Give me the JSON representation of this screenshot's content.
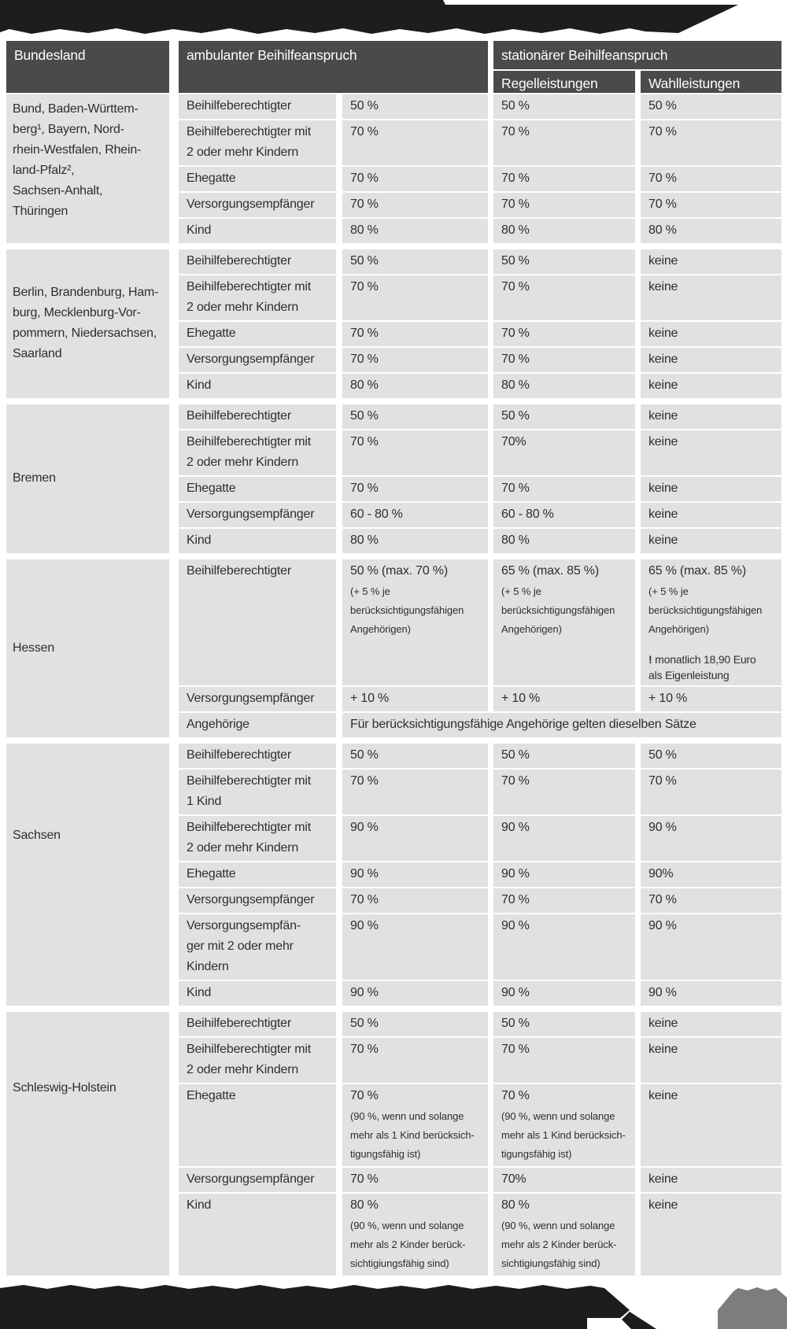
{
  "colors": {
    "header_bg": "#4a4a4a",
    "cell_bg": "#e1e1e1",
    "banner_black": "#1d1d1b",
    "corner_gray": "#7d7d7d"
  },
  "header": {
    "bundesland": "Bundesland",
    "ambulant": "ambulanter Beihilfeanspruch",
    "stationaer": "stationärer Beihilfeanspruch",
    "regelleistungen": "Regelleistungen",
    "wahlleistungen": "Wahlleistungen"
  },
  "groups": [
    {
      "state": "Bund, Baden-Württem-\nberg¹, Bayern, Nord-\nrhein-Westfalen, Rhein-\nland-Pfalz²,\nSachsen-Anhalt,\nThüringen",
      "rows": [
        {
          "label": "Beihilfeberechtigter",
          "ambulant": "50 %",
          "regel": "50 %",
          "wahl": "50 %"
        },
        {
          "label": "Beihilfeberechtigter mit\n2 oder mehr Kindern",
          "ambulant": "70 %",
          "regel": "70 %",
          "wahl": "70 %"
        },
        {
          "label": "Ehegatte",
          "ambulant": "70 %",
          "regel": "70 %",
          "wahl": "70 %"
        },
        {
          "label": "Versorgungsempfänger",
          "ambulant": "70 %",
          "regel": "70 %",
          "wahl": "70 %"
        },
        {
          "label": "Kind",
          "ambulant": "80 %",
          "regel": "80 %",
          "wahl": "80 %"
        }
      ]
    },
    {
      "state": "Berlin, Brandenburg, Ham-\nburg, Mecklenburg-Vor-\npommern, Niedersachsen,\nSaarland",
      "rows": [
        {
          "label": "Beihilfeberechtigter",
          "ambulant": "50 %",
          "regel": "50 %",
          "wahl": "keine"
        },
        {
          "label": "Beihilfeberechtigter mit\n2 oder mehr Kindern",
          "ambulant": "70 %",
          "regel": "70 %",
          "wahl": "keine"
        },
        {
          "label": "Ehegatte",
          "ambulant": "70 %",
          "regel": "70 %",
          "wahl": "keine"
        },
        {
          "label": "Versorgungsempfänger",
          "ambulant": "70 %",
          "regel": "70 %",
          "wahl": "keine"
        },
        {
          "label": "Kind",
          "ambulant": "80 %",
          "regel": "80 %",
          "wahl": "keine"
        }
      ]
    },
    {
      "state": "Bremen",
      "rows": [
        {
          "label": "Beihilfeberechtigter",
          "ambulant": "50 %",
          "regel": "50 %",
          "wahl": "keine"
        },
        {
          "label": "Beihilfeberechtigter mit\n2 oder mehr Kindern",
          "ambulant": "70 %",
          "regel": "70%",
          "wahl": "keine"
        },
        {
          "label": "Ehegatte",
          "ambulant": "70 %",
          "regel": "70 %",
          "wahl": "keine"
        },
        {
          "label": "Versorgungsempfänger",
          "ambulant": "60 - 80 %",
          "regel": "60 - 80 %",
          "wahl": "keine"
        },
        {
          "label": "Kind",
          "ambulant": "80 %",
          "regel": "80 %",
          "wahl": "keine"
        }
      ]
    },
    {
      "state": "Hessen",
      "rows": [
        {
          "label": "Beihilfeberechtigter",
          "ambulant": {
            "v": "50 % (max. 70 %)",
            "note": "(+ 5 % je\nberücksichtigungsfähigen\nAngehörigen)"
          },
          "regel": {
            "v": "65 % (max. 85 %)",
            "note": "(+ 5 % je\nberücksichtigungsfähigen\nAngehörigen)"
          },
          "wahl": {
            "v": "65 % (max. 85 %)",
            "note": "(+ 5 % je\nberücksichtigungsfähigen\nAngehörigen)",
            "warn_mark": "!",
            "warn": "monatlich 18,90 Euro\nals Eigenleistung"
          }
        },
        {
          "label": "Versorgungsempfänger",
          "ambulant": "+ 10 %",
          "regel": "+ 10 %",
          "wahl": "+ 10 %"
        },
        {
          "label": "Angehörige",
          "span": "Für berücksichtigungsfähige Angehörige gelten dieselben Sätze"
        }
      ]
    },
    {
      "state": "Sachsen",
      "rows": [
        {
          "label": "Beihilfeberechtigter",
          "ambulant": "50 %",
          "regel": "50 %",
          "wahl": "50 %"
        },
        {
          "label": "Beihilfeberechtigter mit\n1 Kind",
          "ambulant": "70 %",
          "regel": "70 %",
          "wahl": "70 %"
        },
        {
          "label": "Beihilfeberechtigter mit\n2 oder mehr Kindern",
          "ambulant": "90 %",
          "regel": "90 %",
          "wahl": "90 %"
        },
        {
          "label": "Ehegatte",
          "ambulant": "90 %",
          "regel": "90 %",
          "wahl": "90%"
        },
        {
          "label": "Versorgungsempfänger",
          "ambulant": "70 %",
          "regel": "70 %",
          "wahl": "70 %"
        },
        {
          "label": "Versorgungsempfän-\nger mit 2 oder mehr\nKindern",
          "ambulant": "90 %",
          "regel": "90 %",
          "wahl": "90 %"
        },
        {
          "label": "Kind",
          "ambulant": "90 %",
          "regel": "90 %",
          "wahl": "90 %"
        }
      ]
    },
    {
      "state": "Schleswig-Holstein",
      "rows": [
        {
          "label": "Beihilfeberechtigter",
          "ambulant": "50 %",
          "regel": "50 %",
          "wahl": "keine"
        },
        {
          "label": "Beihilfeberechtigter mit\n2 oder mehr Kindern",
          "ambulant": "70 %",
          "regel": "70 %",
          "wahl": "keine"
        },
        {
          "label": "Ehegatte",
          "ambulant": {
            "v": "70 %",
            "note": "(90 %, wenn und solange\nmehr als 1 Kind berücksich-\ntigungsfähig ist)"
          },
          "regel": {
            "v": "70 %",
            "note": "(90 %, wenn und solange\nmehr als 1 Kind berücksich-\ntigungsfähig ist)"
          },
          "wahl": "keine"
        },
        {
          "label": "Versorgungsempfänger",
          "ambulant": "70 %",
          "regel": "70%",
          "wahl": "keine"
        },
        {
          "label": "Kind",
          "ambulant": {
            "v": "80 %",
            "note": "(90 %, wenn und solange\nmehr als 2 Kinder berück-\nsichtigiungsfähig sind)"
          },
          "regel": {
            "v": "80 %",
            "note": "(90 %, wenn und solange\nmehr als 2 Kinder berück-\nsichtigiungsfähig sind)"
          },
          "wahl": "keine"
        }
      ]
    }
  ]
}
